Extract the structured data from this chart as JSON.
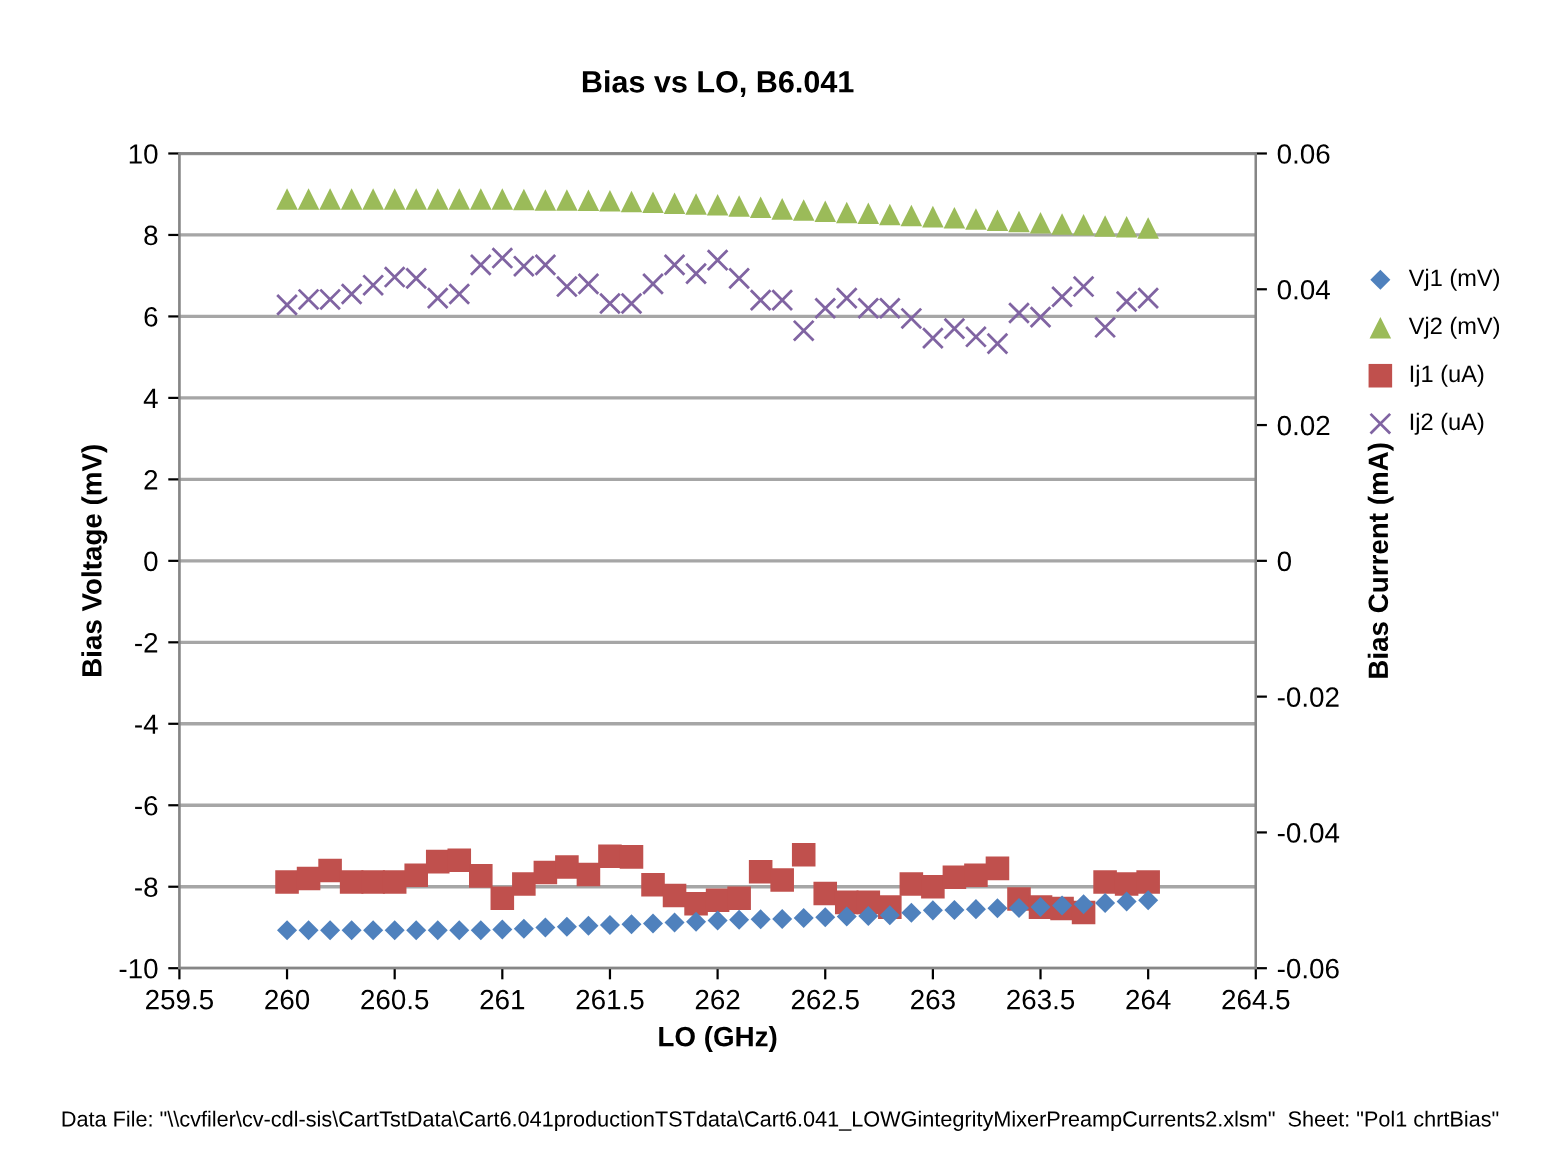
{
  "chart_data": {
    "type": "scatter",
    "title": "Bias vs LO, B6.041",
    "xlabel": "LO (GHz)",
    "ylabel": "Bias Voltage (mV)",
    "y2label": "Bias Current (mA)",
    "annotations": [
      "Data File: \"\\\\cvfiler\\cv-cdl-sis\\CartTstData\\Cart6.041productionTSTdata\\Cart6.041_LOWGintegrityMixerPreampCurrents2.xlsm\"  Sheet: \"Pol1 chrtBias\""
    ],
    "x": [
      260,
      260.1,
      260.2,
      260.3,
      260.4,
      260.5,
      260.6,
      260.7,
      260.8,
      260.9,
      261,
      261.1,
      261.2,
      261.3,
      261.4,
      261.5,
      261.6,
      261.7,
      261.8,
      261.9,
      262,
      262.1,
      262.2,
      262.3,
      262.4,
      262.5,
      262.6,
      262.7,
      262.8,
      262.9,
      263,
      263.1,
      263.2,
      263.3,
      263.4,
      263.5,
      263.6,
      263.7,
      263.8,
      263.9,
      264
    ],
    "series": [
      {
        "name": "Vj1 (mV)",
        "color": "#4f81bd",
        "marker": "diamond",
        "values": [
          -9.07,
          -9.07,
          -9.07,
          -9.07,
          -9.07,
          -9.07,
          -9.07,
          -9.07,
          -9.07,
          -9.07,
          -9.05,
          -9.03,
          -9.0,
          -8.98,
          -8.96,
          -8.94,
          -8.92,
          -8.9,
          -8.88,
          -8.86,
          -8.83,
          -8.81,
          -8.8,
          -8.79,
          -8.77,
          -8.75,
          -8.73,
          -8.72,
          -8.7,
          -8.64,
          -8.58,
          -8.57,
          -8.55,
          -8.53,
          -8.52,
          -8.5,
          -8.46,
          -8.43,
          -8.4,
          -8.36,
          -8.33
        ]
      },
      {
        "name": "Vj2 (mV)",
        "color": "#9bbb59",
        "marker": "triangle",
        "values": [
          8.88,
          8.88,
          8.88,
          8.88,
          8.88,
          8.88,
          8.88,
          8.88,
          8.88,
          8.88,
          8.88,
          8.87,
          8.86,
          8.86,
          8.85,
          8.84,
          8.82,
          8.8,
          8.78,
          8.76,
          8.74,
          8.71,
          8.68,
          8.64,
          8.61,
          8.58,
          8.55,
          8.53,
          8.5,
          8.48,
          8.45,
          8.42,
          8.39,
          8.36,
          8.33,
          8.3,
          8.27,
          8.25,
          8.22,
          8.2,
          8.17
        ]
      },
      {
        "name": "Ij1 (uA)",
        "color": "#c0504d",
        "marker": "square",
        "axis": "y2",
        "values": [
          -0.0473,
          -0.0468,
          -0.0456,
          -0.0473,
          -0.0473,
          -0.0473,
          -0.0463,
          -0.0443,
          -0.0441,
          -0.0464,
          -0.0497,
          -0.0476,
          -0.0459,
          -0.0451,
          -0.0462,
          -0.0435,
          -0.0436,
          -0.0477,
          -0.0493,
          -0.0505,
          -0.05,
          -0.0497,
          -0.0458,
          -0.047,
          -0.0433,
          -0.049,
          -0.0503,
          -0.0503,
          -0.051,
          -0.0476,
          -0.048,
          -0.0466,
          -0.0463,
          -0.0453,
          -0.0498,
          -0.051,
          -0.0512,
          -0.0518,
          -0.0473,
          -0.0476,
          -0.0473
        ]
      },
      {
        "name": "Ij2 (uA)",
        "color": "#8064a2",
        "marker": "cross",
        "axis": "y2",
        "values": [
          0.0377,
          0.0385,
          0.0385,
          0.0393,
          0.0406,
          0.0418,
          0.0416,
          0.0387,
          0.0393,
          0.0436,
          0.0446,
          0.0434,
          0.0436,
          0.0404,
          0.0408,
          0.0379,
          0.0379,
          0.0408,
          0.0436,
          0.0423,
          0.0443,
          0.0416,
          0.0384,
          0.0384,
          0.0339,
          0.0372,
          0.0387,
          0.0372,
          0.0372,
          0.0357,
          0.0328,
          0.0342,
          0.033,
          0.032,
          0.0365,
          0.0359,
          0.0389,
          0.0404,
          0.0344,
          0.0382,
          0.0387
        ]
      }
    ],
    "xlim": [
      259.5,
      264.5
    ],
    "xticks": [
      259.5,
      260,
      260.5,
      261,
      261.5,
      262,
      262.5,
      263,
      263.5,
      264,
      264.5
    ],
    "ylim": [
      -10,
      10
    ],
    "yticks": [
      -10,
      -8,
      -6,
      -4,
      -2,
      0,
      2,
      4,
      6,
      8,
      10
    ],
    "y2lim": [
      -0.06,
      0.06
    ],
    "y2ticks": [
      -0.06,
      -0.04,
      -0.02,
      0,
      0.02,
      0.04,
      0.06
    ],
    "grid": "y",
    "legend": "right"
  }
}
